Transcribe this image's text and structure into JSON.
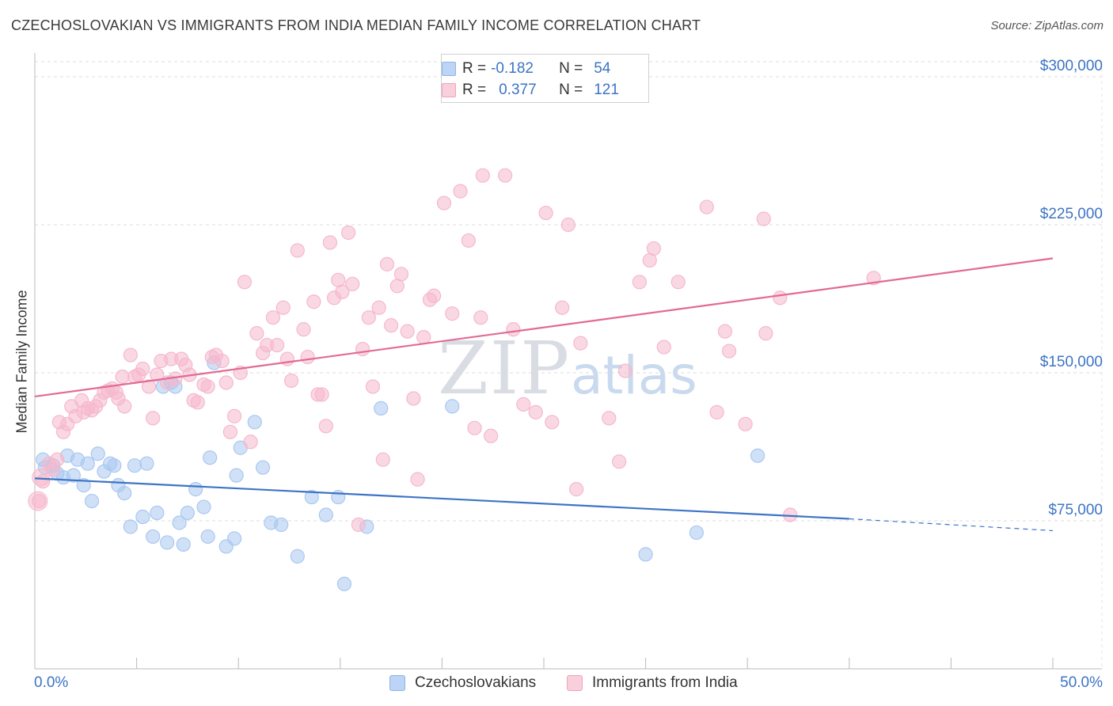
{
  "header": {
    "title": "CZECHOSLOVAKIAN VS IMMIGRANTS FROM INDIA MEDIAN FAMILY INCOME CORRELATION CHART",
    "source": "Source: ZipAtlas.com"
  },
  "watermark": {
    "zip": "ZIP",
    "atlas": "atlas"
  },
  "legend_top": {
    "rows": [
      {
        "r_label": "R =",
        "r_value": "-0.182",
        "n_label": "N =",
        "n_value": "54",
        "color": "#a9c8f0"
      },
      {
        "r_label": "R =",
        "r_value": "0.377",
        "n_label": "N =",
        "n_value": "121",
        "color": "#f5b8cc"
      }
    ]
  },
  "chart_data": {
    "type": "scatter",
    "title": "CZECHOSLOVAKIAN VS IMMIGRANTS FROM INDIA MEDIAN FAMILY INCOME CORRELATION CHART",
    "xlabel": "",
    "ylabel": "Median Family Income",
    "xlim": [
      0,
      50
    ],
    "ylim": [
      0,
      315000
    ],
    "x_tick_labels": [
      "0.0%",
      "50.0%"
    ],
    "y_ticks": [
      75000,
      150000,
      225000,
      300000
    ],
    "y_tick_labels": [
      "$75,000",
      "$150,000",
      "$225,000",
      "$300,000"
    ],
    "grid": true,
    "legend_position": "bottom",
    "series": [
      {
        "name": "Czechoslovakians",
        "color": "#3d74c5",
        "fill": "#a9c8f0",
        "trend": {
          "x": [
            0,
            40
          ],
          "y": [
            96500,
            76000
          ],
          "dashed_to": [
            50,
            70000
          ]
        },
        "points": [
          [
            0.4,
            106000
          ],
          [
            0.5,
            102000
          ],
          [
            0.9,
            103000
          ],
          [
            1.1,
            99000
          ],
          [
            1.4,
            97000
          ],
          [
            1.6,
            108000
          ],
          [
            1.9,
            98000
          ],
          [
            2.1,
            106000
          ],
          [
            2.4,
            93000
          ],
          [
            2.6,
            104000
          ],
          [
            2.8,
            85000
          ],
          [
            3.1,
            109000
          ],
          [
            3.4,
            100000
          ],
          [
            3.7,
            104000
          ],
          [
            3.9,
            103000
          ],
          [
            4.1,
            93000
          ],
          [
            4.4,
            89000
          ],
          [
            4.7,
            72000
          ],
          [
            4.9,
            103000
          ],
          [
            5.3,
            77000
          ],
          [
            5.5,
            104000
          ],
          [
            5.8,
            67000
          ],
          [
            6.0,
            79000
          ],
          [
            6.3,
            143000
          ],
          [
            6.5,
            64000
          ],
          [
            6.7,
            145000
          ],
          [
            6.9,
            143000
          ],
          [
            7.1,
            74000
          ],
          [
            7.3,
            63000
          ],
          [
            7.5,
            79000
          ],
          [
            7.9,
            91000
          ],
          [
            8.3,
            82000
          ],
          [
            8.5,
            67000
          ],
          [
            8.6,
            107000
          ],
          [
            8.8,
            155000
          ],
          [
            9.4,
            62000
          ],
          [
            9.8,
            66000
          ],
          [
            9.9,
            98000
          ],
          [
            10.1,
            112000
          ],
          [
            10.8,
            125000
          ],
          [
            11.2,
            102000
          ],
          [
            11.6,
            74000
          ],
          [
            12.1,
            73000
          ],
          [
            12.9,
            57000
          ],
          [
            13.6,
            87000
          ],
          [
            14.3,
            78000
          ],
          [
            14.9,
            87000
          ],
          [
            15.2,
            43000
          ],
          [
            16.3,
            72000
          ],
          [
            17.0,
            132000
          ],
          [
            20.5,
            133000
          ],
          [
            30.0,
            58000
          ],
          [
            32.5,
            69000
          ],
          [
            35.5,
            108000
          ]
        ]
      },
      {
        "name": "Immigrants from India",
        "color": "#e26a94",
        "fill": "#f5b8cc",
        "trend": {
          "x": [
            0,
            50
          ],
          "y": [
            138000,
            208000
          ]
        },
        "points": [
          [
            0.2,
            85000
          ],
          [
            0.4,
            95000
          ],
          [
            0.7,
            104000
          ],
          [
            0.9,
            101000
          ],
          [
            1.1,
            106000
          ],
          [
            1.2,
            125000
          ],
          [
            1.4,
            120000
          ],
          [
            1.6,
            124000
          ],
          [
            1.8,
            133000
          ],
          [
            2.0,
            128000
          ],
          [
            2.3,
            136000
          ],
          [
            2.4,
            130000
          ],
          [
            2.6,
            132000
          ],
          [
            2.8,
            131000
          ],
          [
            3.0,
            133000
          ],
          [
            3.2,
            136000
          ],
          [
            3.4,
            140000
          ],
          [
            3.6,
            141000
          ],
          [
            3.8,
            142000
          ],
          [
            4.0,
            140000
          ],
          [
            4.1,
            137000
          ],
          [
            4.3,
            148000
          ],
          [
            4.4,
            133000
          ],
          [
            4.7,
            159000
          ],
          [
            4.9,
            148000
          ],
          [
            5.1,
            149000
          ],
          [
            5.3,
            152000
          ],
          [
            5.6,
            143000
          ],
          [
            5.8,
            127000
          ],
          [
            6.0,
            149000
          ],
          [
            6.2,
            156000
          ],
          [
            6.5,
            145000
          ],
          [
            6.7,
            157000
          ],
          [
            6.9,
            147000
          ],
          [
            7.2,
            157000
          ],
          [
            7.4,
            154000
          ],
          [
            7.6,
            149000
          ],
          [
            7.8,
            136000
          ],
          [
            8.0,
            135000
          ],
          [
            8.3,
            144000
          ],
          [
            8.5,
            143000
          ],
          [
            8.7,
            158000
          ],
          [
            8.9,
            159000
          ],
          [
            9.2,
            156000
          ],
          [
            9.4,
            145000
          ],
          [
            9.6,
            120000
          ],
          [
            9.8,
            128000
          ],
          [
            10.1,
            150000
          ],
          [
            10.3,
            196000
          ],
          [
            10.6,
            115000
          ],
          [
            10.9,
            170000
          ],
          [
            11.2,
            160000
          ],
          [
            11.4,
            164000
          ],
          [
            11.7,
            178000
          ],
          [
            11.9,
            164000
          ],
          [
            12.2,
            183000
          ],
          [
            12.4,
            157000
          ],
          [
            12.6,
            146000
          ],
          [
            12.9,
            212000
          ],
          [
            13.2,
            172000
          ],
          [
            13.4,
            158000
          ],
          [
            13.7,
            186000
          ],
          [
            13.9,
            139000
          ],
          [
            14.1,
            139000
          ],
          [
            14.3,
            123000
          ],
          [
            14.5,
            216000
          ],
          [
            14.7,
            188000
          ],
          [
            14.9,
            197000
          ],
          [
            15.1,
            191000
          ],
          [
            15.4,
            221000
          ],
          [
            15.6,
            195000
          ],
          [
            15.9,
            73000
          ],
          [
            16.1,
            162000
          ],
          [
            16.4,
            178000
          ],
          [
            16.6,
            143000
          ],
          [
            16.9,
            183000
          ],
          [
            17.1,
            106000
          ],
          [
            17.3,
            205000
          ],
          [
            17.5,
            174000
          ],
          [
            17.8,
            194000
          ],
          [
            18.0,
            200000
          ],
          [
            18.3,
            171000
          ],
          [
            18.6,
            137000
          ],
          [
            18.8,
            96000
          ],
          [
            19.1,
            168000
          ],
          [
            19.4,
            187000
          ],
          [
            19.6,
            189000
          ],
          [
            20.1,
            236000
          ],
          [
            20.5,
            180000
          ],
          [
            20.9,
            242000
          ],
          [
            21.3,
            217000
          ],
          [
            21.6,
            122000
          ],
          [
            21.9,
            178000
          ],
          [
            22.0,
            250000
          ],
          [
            22.4,
            118000
          ],
          [
            23.1,
            250000
          ],
          [
            23.5,
            172000
          ],
          [
            24.0,
            134000
          ],
          [
            24.6,
            130000
          ],
          [
            25.1,
            231000
          ],
          [
            25.4,
            125000
          ],
          [
            25.9,
            183000
          ],
          [
            26.2,
            225000
          ],
          [
            26.6,
            91000
          ],
          [
            26.8,
            165000
          ],
          [
            28.2,
            127000
          ],
          [
            28.7,
            105000
          ],
          [
            29.0,
            151000
          ],
          [
            29.7,
            196000
          ],
          [
            30.2,
            207000
          ],
          [
            30.4,
            213000
          ],
          [
            30.9,
            163000
          ],
          [
            31.6,
            196000
          ],
          [
            33.0,
            234000
          ],
          [
            33.5,
            130000
          ],
          [
            33.9,
            171000
          ],
          [
            34.1,
            161000
          ],
          [
            34.9,
            124000
          ],
          [
            35.8,
            228000
          ],
          [
            35.9,
            170000
          ],
          [
            36.6,
            188000
          ],
          [
            37.1,
            78000
          ],
          [
            41.2,
            198000
          ]
        ]
      }
    ]
  },
  "bottom_legend": {
    "items": [
      {
        "label": "Czechoslovakians",
        "color": "#a9c8f0",
        "border": "#7fa8e0"
      },
      {
        "label": "Immigrants from India",
        "color": "#f9cfdc",
        "border": "#eea3bc"
      }
    ]
  }
}
